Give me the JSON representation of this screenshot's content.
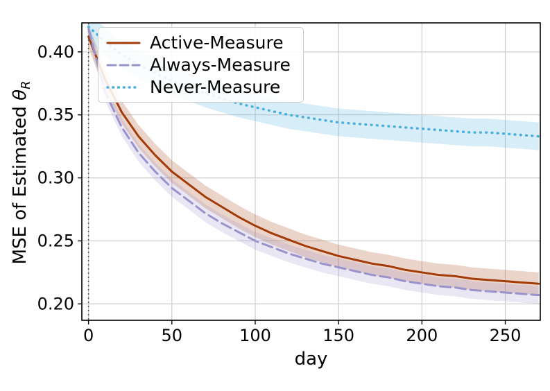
{
  "figure": {
    "background": "#ffffff"
  },
  "chart_data": {
    "type": "line",
    "title": "",
    "xlabel": "day",
    "ylabel": "MSE of Estimated θ_R",
    "xlim": [
      -4,
      271
    ],
    "ylim": [
      0.187,
      0.423
    ],
    "grid": true,
    "grid_color": "#cccccc",
    "legend_position": "upper left",
    "xticks": {
      "values": [
        0,
        50,
        100,
        150,
        200,
        250
      ],
      "labels": [
        "0",
        "50",
        "100",
        "150",
        "200",
        "250"
      ]
    },
    "yticks": {
      "values": [
        0.2,
        0.25,
        0.3,
        0.35,
        0.4
      ],
      "labels": [
        "0.20",
        "0.25",
        "0.30",
        "0.35",
        "0.40"
      ]
    },
    "vline": {
      "x": 0,
      "color": "#555555",
      "style": "dotted"
    },
    "x": [
      0,
      10,
      20,
      30,
      40,
      50,
      60,
      70,
      80,
      90,
      100,
      110,
      120,
      130,
      140,
      150,
      160,
      170,
      180,
      190,
      200,
      210,
      220,
      230,
      240,
      250,
      260,
      270
    ],
    "series": [
      {
        "name": "Active-Measure",
        "color": "#a23b08",
        "style": "solid",
        "band_halfwidth": 0.009,
        "values": [
          0.412,
          0.378,
          0.352,
          0.333,
          0.318,
          0.305,
          0.295,
          0.285,
          0.277,
          0.269,
          0.262,
          0.256,
          0.251,
          0.246,
          0.242,
          0.238,
          0.235,
          0.232,
          0.23,
          0.227,
          0.225,
          0.223,
          0.222,
          0.22,
          0.219,
          0.218,
          0.217,
          0.216
        ]
      },
      {
        "name": "Always-Measure",
        "color": "#9a92cb",
        "style": "dashed",
        "band_halfwidth": 0.007,
        "values": [
          0.418,
          0.368,
          0.34,
          0.32,
          0.305,
          0.292,
          0.282,
          0.272,
          0.264,
          0.257,
          0.25,
          0.245,
          0.24,
          0.236,
          0.232,
          0.229,
          0.226,
          0.223,
          0.221,
          0.218,
          0.216,
          0.214,
          0.213,
          0.211,
          0.21,
          0.209,
          0.208,
          0.207
        ]
      },
      {
        "name": "Never-Measure",
        "color": "#4aafdc",
        "style": "dotted",
        "band_halfwidth": 0.011,
        "values": [
          0.42,
          0.408,
          0.398,
          0.39,
          0.383,
          0.377,
          0.372,
          0.367,
          0.363,
          0.359,
          0.356,
          0.353,
          0.35,
          0.348,
          0.346,
          0.344,
          0.343,
          0.342,
          0.341,
          0.34,
          0.339,
          0.338,
          0.337,
          0.336,
          0.336,
          0.335,
          0.334,
          0.333
        ]
      }
    ]
  }
}
